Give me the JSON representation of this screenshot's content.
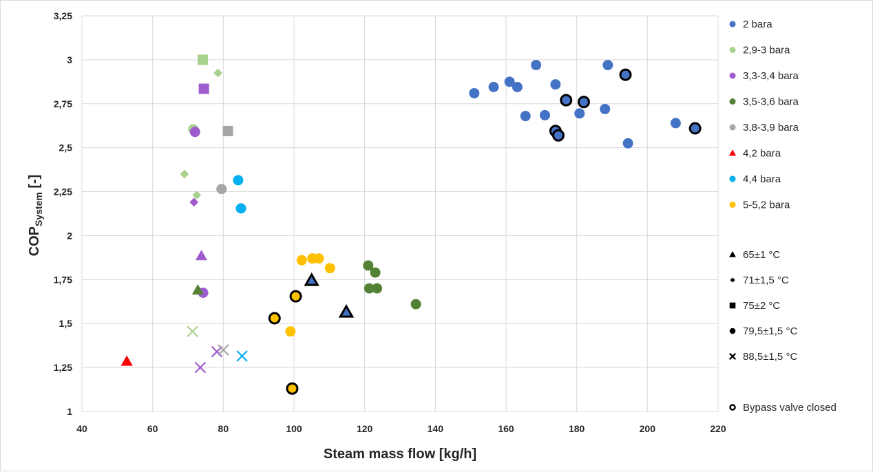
{
  "chart_data": {
    "type": "scatter",
    "xlabel": "Steam mass flow [kg/h]",
    "ylabel": {
      "main": "COP",
      "subscript": "System",
      "suffix": " [-]"
    },
    "xlim": [
      40,
      220
    ],
    "ylim": [
      1,
      3.25
    ],
    "xticks": [
      40,
      60,
      80,
      100,
      120,
      140,
      160,
      180,
      200,
      220
    ],
    "xtick_labels": [
      "40",
      "60",
      "80",
      "100",
      "120",
      "140",
      "160",
      "180",
      "200",
      "220"
    ],
    "yticks": [
      1,
      1.25,
      1.5,
      1.75,
      2,
      2.25,
      2.5,
      2.75,
      3,
      3.25
    ],
    "ytick_labels": [
      "1",
      "1,25",
      "1,5",
      "1,75",
      "2",
      "2,25",
      "2,5",
      "2,75",
      "3",
      "3,25"
    ],
    "grid": true,
    "legend_position": "right",
    "pressure_legend": [
      {
        "label": "2 bara",
        "color": "#4472c4",
        "marker": "circle"
      },
      {
        "label": "2,9-3 bara",
        "color": "#a9d18e",
        "marker": "circle"
      },
      {
        "label": "3,3-3,4 bara",
        "color": "#9e5ccf",
        "marker": "circle"
      },
      {
        "label": "3,5-3,6 bara",
        "color": "#548235",
        "marker": "circle"
      },
      {
        "label": "3,8-3,9 bara",
        "color": "#a6a6a6",
        "marker": "circle"
      },
      {
        "label": "4,2 bara",
        "color": "#ff0000",
        "marker": "triangle"
      },
      {
        "label": "4,4 bara",
        "color": "#00b0f0",
        "marker": "circle"
      },
      {
        "label": "5-5,2 bara",
        "color": "#ffc000",
        "marker": "circle"
      }
    ],
    "temperature_legend": [
      {
        "label": "65±1 °C",
        "marker": "triangle"
      },
      {
        "label": "71±1,5 °C",
        "marker": "diamond"
      },
      {
        "label": "75±2 °C",
        "marker": "square"
      },
      {
        "label": "79,5±1,5 °C",
        "marker": "circle"
      },
      {
        "label": "88,5±1,5 °C",
        "marker": "cross"
      }
    ],
    "bypass_legend": {
      "label": "Bypass valve closed",
      "marker": "open-circle"
    },
    "series": [
      {
        "name": "2 bara",
        "color": "#4472c4",
        "points": [
          {
            "x": 151,
            "y": 2.81,
            "marker": "circle"
          },
          {
            "x": 156.5,
            "y": 2.845,
            "marker": "circle"
          },
          {
            "x": 161,
            "y": 2.875,
            "marker": "circle"
          },
          {
            "x": 163.2,
            "y": 2.845,
            "marker": "circle"
          },
          {
            "x": 165.5,
            "y": 2.68,
            "marker": "circle"
          },
          {
            "x": 168.5,
            "y": 2.97,
            "marker": "circle"
          },
          {
            "x": 171,
            "y": 2.685,
            "marker": "circle"
          },
          {
            "x": 174,
            "y": 2.86,
            "marker": "circle"
          },
          {
            "x": 174,
            "y": 2.595,
            "marker": "circle",
            "bypass": true
          },
          {
            "x": 174.8,
            "y": 2.57,
            "marker": "circle",
            "bypass": true
          },
          {
            "x": 177,
            "y": 2.77,
            "marker": "circle",
            "bypass": true
          },
          {
            "x": 180.8,
            "y": 2.695,
            "marker": "circle"
          },
          {
            "x": 182,
            "y": 2.76,
            "marker": "circle",
            "bypass": true
          },
          {
            "x": 188,
            "y": 2.72,
            "marker": "circle"
          },
          {
            "x": 188.8,
            "y": 2.97,
            "marker": "circle"
          },
          {
            "x": 193.8,
            "y": 2.915,
            "marker": "circle",
            "bypass": true
          },
          {
            "x": 194.5,
            "y": 2.525,
            "marker": "circle"
          },
          {
            "x": 208,
            "y": 2.64,
            "marker": "circle"
          },
          {
            "x": 213.5,
            "y": 2.61,
            "marker": "circle",
            "bypass": true
          },
          {
            "x": 105,
            "y": 1.745,
            "marker": "triangle",
            "bypass": true
          },
          {
            "x": 114.8,
            "y": 1.565,
            "marker": "triangle",
            "bypass": true
          }
        ]
      },
      {
        "name": "2,9-3 bara",
        "color": "#a9d18e",
        "points": [
          {
            "x": 71.5,
            "y": 2.605,
            "marker": "circle"
          },
          {
            "x": 74.2,
            "y": 3.0,
            "marker": "square"
          },
          {
            "x": 78.5,
            "y": 2.925,
            "marker": "diamond"
          },
          {
            "x": 69,
            "y": 2.35,
            "marker": "diamond"
          },
          {
            "x": 72.5,
            "y": 2.23,
            "marker": "diamond"
          },
          {
            "x": 71.3,
            "y": 1.455,
            "marker": "cross"
          }
        ]
      },
      {
        "name": "3,3-3,4 bara",
        "color": "#9e5ccf",
        "points": [
          {
            "x": 72,
            "y": 2.59,
            "marker": "circle"
          },
          {
            "x": 74.5,
            "y": 2.835,
            "marker": "square"
          },
          {
            "x": 71.7,
            "y": 2.19,
            "marker": "diamond"
          },
          {
            "x": 73.8,
            "y": 1.885,
            "marker": "triangle"
          },
          {
            "x": 74.3,
            "y": 1.675,
            "marker": "circle"
          },
          {
            "x": 73.5,
            "y": 1.25,
            "marker": "cross"
          },
          {
            "x": 78.2,
            "y": 1.34,
            "marker": "cross"
          }
        ]
      },
      {
        "name": "3,5-3,6 bara",
        "color": "#548235",
        "points": [
          {
            "x": 72.8,
            "y": 1.69,
            "marker": "triangle"
          },
          {
            "x": 121,
            "y": 1.83,
            "marker": "circle"
          },
          {
            "x": 123,
            "y": 1.79,
            "marker": "circle"
          },
          {
            "x": 121.3,
            "y": 1.7,
            "marker": "circle"
          },
          {
            "x": 123.5,
            "y": 1.7,
            "marker": "circle"
          },
          {
            "x": 134.5,
            "y": 1.61,
            "marker": "circle"
          }
        ]
      },
      {
        "name": "3,8-3,9 bara",
        "color": "#a6a6a6",
        "points": [
          {
            "x": 81.3,
            "y": 2.595,
            "marker": "square"
          },
          {
            "x": 79.5,
            "y": 2.265,
            "marker": "circle"
          },
          {
            "x": 80,
            "y": 1.35,
            "marker": "cross"
          }
        ]
      },
      {
        "name": "4,2 bara",
        "color": "#ff0000",
        "points": [
          {
            "x": 52.7,
            "y": 1.285,
            "marker": "triangle"
          }
        ]
      },
      {
        "name": "4,4 bara",
        "color": "#00b0f0",
        "points": [
          {
            "x": 84.2,
            "y": 2.315,
            "marker": "circle"
          },
          {
            "x": 85,
            "y": 2.155,
            "marker": "circle"
          },
          {
            "x": 85.3,
            "y": 1.315,
            "marker": "cross"
          }
        ]
      },
      {
        "name": "5-5,2 bara",
        "color": "#ffc000",
        "points": [
          {
            "x": 102.2,
            "y": 1.86,
            "marker": "circle"
          },
          {
            "x": 105.2,
            "y": 1.87,
            "marker": "circle"
          },
          {
            "x": 107,
            "y": 1.87,
            "marker": "circle"
          },
          {
            "x": 110.2,
            "y": 1.815,
            "marker": "circle"
          },
          {
            "x": 100.5,
            "y": 1.655,
            "marker": "circle",
            "bypass": true
          },
          {
            "x": 94.5,
            "y": 1.53,
            "marker": "circle",
            "bypass": true
          },
          {
            "x": 99,
            "y": 1.455,
            "marker": "circle"
          },
          {
            "x": 99.5,
            "y": 1.13,
            "marker": "circle",
            "bypass": true
          }
        ]
      }
    ]
  }
}
